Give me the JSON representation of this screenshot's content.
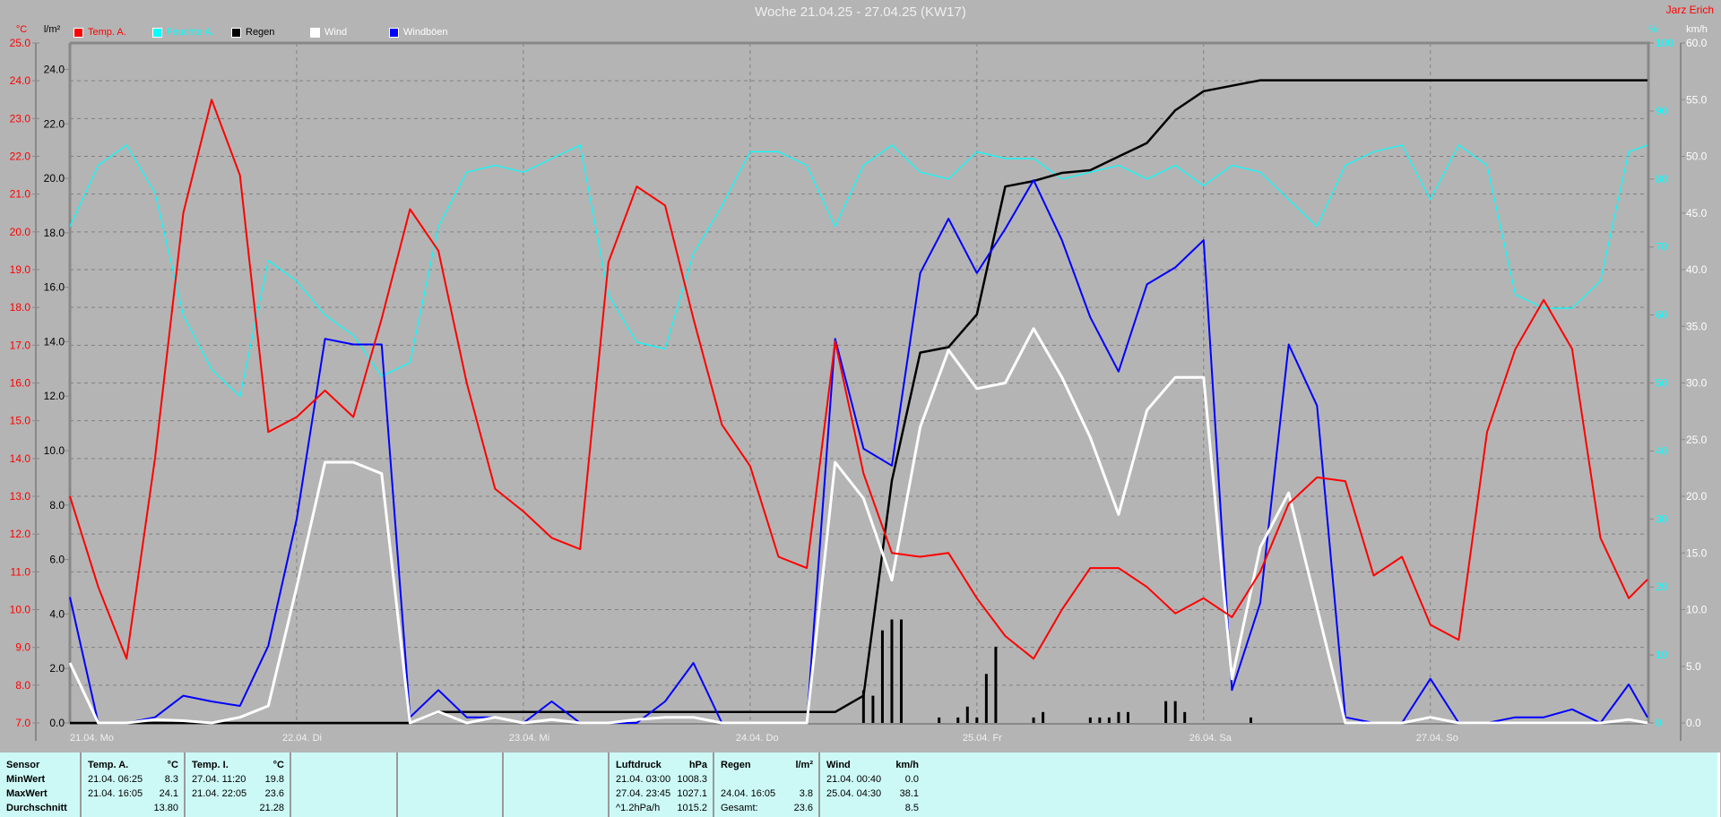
{
  "header": {
    "title": "Woche 21.04.25 - 27.04.25 (KW17)",
    "author": "Jarz Erich"
  },
  "legend": [
    {
      "label": "Temp. A.",
      "color": "#ff0000"
    },
    {
      "label": "Feuchte A.",
      "color": "#00ffff"
    },
    {
      "label": "Regen",
      "color": "#000000"
    },
    {
      "label": "Wind",
      "color": "#ffffff"
    },
    {
      "label": "Windböen",
      "color": "#0000ff"
    }
  ],
  "chart_data": {
    "type": "line",
    "title": "Woche 21.04.25 - 27.04.25 (KW17)",
    "grid": true,
    "legend_position": "top",
    "x_axis": {
      "day_labels": [
        "21.04. Mo",
        "22.04. Di",
        "23.04. Mi",
        "24.04. Do",
        "25.04. Fr",
        "26.04. Sa",
        "27.04. So"
      ],
      "range": [
        "21.04. 00:00",
        "27.04. 23:00"
      ]
    },
    "axes": {
      "temp": {
        "unit": "°C",
        "ylim": [
          7,
          25
        ],
        "ticks": [
          "25.0",
          "24.0",
          "23.0",
          "22.0",
          "21.0",
          "20.0",
          "19.0",
          "18.0",
          "17.0",
          "16.0",
          "15.0",
          "14.0",
          "13.0",
          "12.0",
          "11.0",
          "10.0",
          "9.0",
          "8.0",
          "7.0"
        ],
        "color": "#ff0000"
      },
      "rain": {
        "unit": "l/m²",
        "ylim": [
          0,
          24.97
        ],
        "ticks": [
          "0.0",
          "2.0",
          "4.0",
          "6.0",
          "8.0",
          "10.0",
          "12.0",
          "14.0",
          "16.0",
          "18.0",
          "20.0",
          "22.0",
          "24.0"
        ],
        "color": "#000000"
      },
      "humidity": {
        "unit": "%",
        "ylim": [
          0,
          100
        ],
        "ticks": [
          "0",
          "10",
          "20",
          "30",
          "40",
          "50",
          "60",
          "70",
          "80",
          "90",
          "100"
        ],
        "color": "#00ffff"
      },
      "wind": {
        "unit": "km/h",
        "ylim": [
          0,
          60
        ],
        "ticks": [
          "0.0",
          "5.0",
          "10.0",
          "15.0",
          "20.0",
          "25.0",
          "30.0",
          "35.0",
          "40.0",
          "45.0",
          "50.0",
          "55.0",
          "60.0"
        ],
        "color": "#ffffff"
      }
    },
    "x": [
      "21.04. 00:00",
      "21.04. 03:00",
      "21.04. 06:00",
      "21.04. 09:00",
      "21.04. 12:00",
      "21.04. 15:00",
      "21.04. 18:00",
      "21.04. 21:00",
      "22.04. 00:00",
      "22.04. 03:00",
      "22.04. 06:00",
      "22.04. 09:00",
      "22.04. 12:00",
      "22.04. 15:00",
      "22.04. 18:00",
      "22.04. 21:00",
      "23.04. 00:00",
      "23.04. 03:00",
      "23.04. 06:00",
      "23.04. 09:00",
      "23.04. 12:00",
      "23.04. 15:00",
      "23.04. 18:00",
      "23.04. 21:00",
      "24.04. 00:00",
      "24.04. 03:00",
      "24.04. 06:00",
      "24.04. 09:00",
      "24.04. 12:00",
      "24.04. 15:00",
      "24.04. 18:00",
      "24.04. 21:00",
      "25.04. 00:00",
      "25.04. 03:00",
      "25.04. 06:00",
      "25.04. 09:00",
      "25.04. 12:00",
      "25.04. 15:00",
      "25.04. 18:00",
      "25.04. 21:00",
      "26.04. 00:00",
      "26.04. 03:00",
      "26.04. 06:00",
      "26.04. 09:00",
      "26.04. 12:00",
      "26.04. 15:00",
      "26.04. 18:00",
      "26.04. 21:00",
      "27.04. 00:00",
      "27.04. 03:00",
      "27.04. 06:00",
      "27.04. 09:00",
      "27.04. 12:00",
      "27.04. 15:00",
      "27.04. 18:00",
      "27.04. 21:00",
      "27.04. 23:00"
    ],
    "series": [
      {
        "name": "Temp. A.",
        "axis": "temp",
        "color": "#ff0000",
        "values": [
          13.0,
          10.6,
          8.7,
          14.0,
          20.5,
          23.5,
          21.5,
          14.7,
          15.1,
          15.8,
          15.1,
          17.7,
          20.6,
          19.5,
          16.0,
          13.2,
          12.6,
          11.9,
          11.6,
          19.2,
          21.2,
          20.7,
          17.7,
          14.9,
          13.8,
          11.4,
          11.1,
          17.1,
          13.6,
          11.5,
          11.4,
          11.5,
          10.3,
          9.3,
          8.7,
          10.0,
          11.1,
          11.1,
          10.6,
          9.9,
          10.3,
          9.8,
          11.0,
          12.8,
          13.5,
          13.4,
          10.9,
          11.4,
          9.6,
          9.2,
          14.7,
          16.9,
          18.2,
          16.9,
          11.9,
          10.3,
          10.8
        ]
      },
      {
        "name": "Feuchte A.",
        "axis": "humidity",
        "color": "#00ffff",
        "values": [
          73,
          82,
          85,
          78,
          60,
          52,
          48,
          68,
          65,
          60,
          57,
          51,
          53,
          73,
          81,
          82,
          81,
          83,
          85,
          63,
          56,
          55,
          69,
          76,
          84,
          84,
          82,
          73,
          82,
          85,
          81,
          80,
          84,
          83,
          83,
          80,
          81,
          82,
          80,
          82,
          79,
          82,
          81,
          77,
          73,
          82,
          84,
          85,
          77,
          85,
          82,
          63,
          61,
          61,
          65,
          84,
          85
        ]
      },
      {
        "name": "Regen",
        "axis": "rain",
        "color": "#000000",
        "values": [
          0,
          0,
          0,
          0,
          0,
          0,
          0,
          0,
          0,
          0,
          0,
          0,
          0,
          0.4,
          0.4,
          0.4,
          0.4,
          0.4,
          0.4,
          0.4,
          0.4,
          0.4,
          0.4,
          0.4,
          0.4,
          0.4,
          0.4,
          0.4,
          1.0,
          8.9,
          13.6,
          13.8,
          15.0,
          19.7,
          19.9,
          20.2,
          20.3,
          20.8,
          21.3,
          22.5,
          23.2,
          23.4,
          23.6,
          23.6,
          23.6,
          23.6,
          23.6,
          23.6,
          23.6,
          23.6,
          23.6,
          23.6,
          23.6,
          23.6,
          23.6,
          23.6,
          23.6
        ]
      },
      {
        "name": "Wind",
        "axis": "wind",
        "color": "#ffffff",
        "values": [
          5.3,
          0,
          0,
          0.3,
          0.2,
          0,
          0.5,
          1.5,
          12,
          23,
          23,
          22,
          0,
          1.0,
          0,
          0.5,
          0,
          0.3,
          0,
          0,
          0.3,
          0.5,
          0.5,
          0,
          0,
          0,
          0,
          23,
          19.8,
          12.6,
          26.1,
          32.9,
          29.5,
          30,
          34.8,
          30.5,
          25.2,
          18.4,
          27.6,
          30.5,
          30.5,
          3.9,
          15.5,
          20.3,
          10.2,
          0,
          0,
          0,
          0.5,
          0,
          0,
          0,
          0,
          0,
          0,
          0.3,
          0
        ]
      },
      {
        "name": "Windböen",
        "axis": "wind",
        "color": "#0000ff",
        "values": [
          11.1,
          0,
          0,
          0.5,
          2.4,
          1.9,
          1.5,
          6.8,
          18,
          33.9,
          33.4,
          33.4,
          0.5,
          2.9,
          0.5,
          0.5,
          0,
          1.9,
          0,
          0,
          0,
          1.9,
          5.3,
          0,
          0,
          0,
          0,
          33.9,
          24.2,
          22.7,
          39.7,
          44.5,
          39.7,
          43.6,
          47.9,
          42.6,
          35.8,
          31,
          38.7,
          40.2,
          42.6,
          2.9,
          10.6,
          33.4,
          28,
          0.5,
          0,
          0,
          3.9,
          0,
          0,
          0.5,
          0.5,
          1.2,
          0,
          3.4,
          0.5
        ]
      }
    ],
    "rain_bars": {
      "axis": "rain",
      "x": [
        "24.04. 12:00",
        "24.04. 13:00",
        "24.04. 14:00",
        "24.04. 15:00",
        "24.04. 16:00",
        "24.04. 20:00",
        "24.04. 22:00",
        "24.04. 23:00",
        "25.04. 00:00",
        "25.04. 01:00",
        "25.04. 02:00",
        "25.04. 06:00",
        "25.04. 07:00",
        "25.04. 12:00",
        "25.04. 13:00",
        "25.04. 14:00",
        "25.04. 15:00",
        "25.04. 16:00",
        "25.04. 20:00",
        "25.04. 21:00",
        "25.04. 22:00",
        "26.04. 05:00"
      ],
      "values": [
        1.2,
        1.0,
        3.4,
        3.8,
        3.8,
        0.2,
        0.2,
        0.6,
        0.2,
        1.8,
        2.8,
        0.2,
        0.4,
        0.2,
        0.2,
        0.2,
        0.4,
        0.4,
        0.8,
        0.8,
        0.4,
        0.2
      ]
    }
  },
  "stats": {
    "row_labels": [
      "Sensor",
      "MinWert",
      "MaxWert",
      "Durchschnitt"
    ],
    "temp_a": {
      "name": "Temp. A.",
      "unit": "°C",
      "min_time": "21.04.  06:25",
      "min": "8.3",
      "max_time": "21.04.  16:05",
      "max": "24.1",
      "avg": "13.80"
    },
    "temp_i": {
      "name": "Temp. I.",
      "unit": "°C",
      "min_time": "27.04.  11:20",
      "min": "19.8",
      "max_time": "21.04.  22:05",
      "max": "23.6",
      "avg": "21.28"
    },
    "pressure": {
      "name": "Luftdruck",
      "unit": "hPa",
      "min_time": "21.04.  03:00",
      "min": "1008.3",
      "max_time": "27.04.  23:45",
      "max": "1027.1",
      "trend": "^1.2hPa/h",
      "avg": "1015.2"
    },
    "rain": {
      "name": "Regen",
      "unit": "l/m²",
      "max_time": "24.04.  16:05",
      "max": "3.8",
      "total_label": "Gesamt:",
      "total": "23.6"
    },
    "wind": {
      "name": "Wind",
      "unit": "km/h",
      "min_time": "21.04.  00:40",
      "min": "0.0",
      "max_time": "25.04.  04:30",
      "max": "38.1",
      "avg": "8.5"
    }
  }
}
